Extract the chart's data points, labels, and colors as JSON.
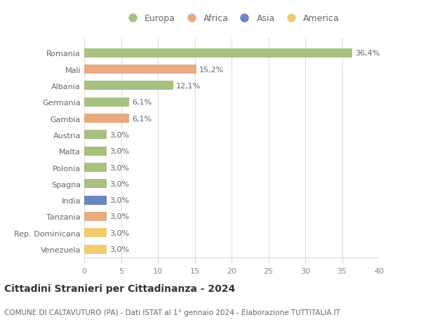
{
  "countries": [
    "Romania",
    "Mali",
    "Albania",
    "Germania",
    "Gambia",
    "Austria",
    "Malta",
    "Polonia",
    "Spagna",
    "India",
    "Tanzania",
    "Rep. Dominicana",
    "Venezuela"
  ],
  "values": [
    36.4,
    15.2,
    12.1,
    6.1,
    6.1,
    3.0,
    3.0,
    3.0,
    3.0,
    3.0,
    3.0,
    3.0,
    3.0
  ],
  "labels": [
    "36,4%",
    "15,2%",
    "12,1%",
    "6,1%",
    "6,1%",
    "3,0%",
    "3,0%",
    "3,0%",
    "3,0%",
    "3,0%",
    "3,0%",
    "3,0%",
    "3,0%"
  ],
  "continents": [
    "Europa",
    "Africa",
    "Europa",
    "Europa",
    "Africa",
    "Europa",
    "Europa",
    "Europa",
    "Europa",
    "Asia",
    "Africa",
    "America",
    "America"
  ],
  "continent_colors": {
    "Europa": "#a8c080",
    "Africa": "#e8aa80",
    "Asia": "#6b86c0",
    "America": "#f0cc70"
  },
  "legend_order": [
    "Europa",
    "Africa",
    "Asia",
    "America"
  ],
  "title": "Cittadini Stranieri per Cittadinanza - 2024",
  "subtitle": "COMUNE DI CALTAVUTURO (PA) - Dati ISTAT al 1° gennaio 2024 - Elaborazione TUTTITALIA.IT",
  "xlim": [
    0,
    40
  ],
  "xticks": [
    0,
    5,
    10,
    15,
    20,
    25,
    30,
    35,
    40
  ],
  "background_color": "#ffffff",
  "grid_color": "#dddddd",
  "bar_height": 0.55,
  "title_fontsize": 10,
  "subtitle_fontsize": 7.5,
  "label_fontsize": 8,
  "tick_fontsize": 8,
  "legend_fontsize": 9
}
